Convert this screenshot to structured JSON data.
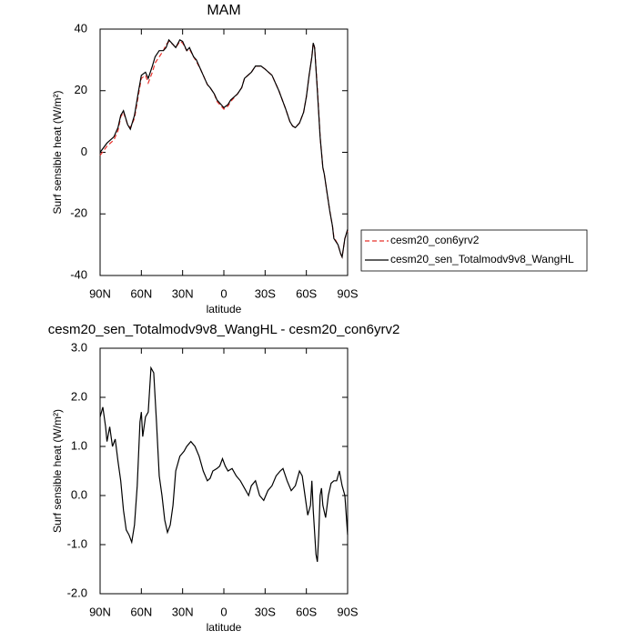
{
  "chart_data": [
    {
      "type": "line",
      "title": "MAM",
      "xlabel": "latitude",
      "ylabel": "Surf sensible heat (W/m²)",
      "x": [
        90,
        85,
        80,
        77,
        75,
        73,
        70,
        68,
        65,
        62,
        60,
        57,
        55,
        52,
        50,
        47,
        44,
        42,
        40,
        37,
        35,
        32,
        30,
        27,
        25,
        22,
        20,
        17,
        15,
        12,
        10,
        7,
        5,
        2,
        0,
        -3,
        -5,
        -10,
        -13,
        -15,
        -20,
        -23,
        -27,
        -30,
        -35,
        -40,
        -45,
        -48,
        -50,
        -52,
        -55,
        -58,
        -60,
        -62,
        -64,
        -65,
        -66,
        -68,
        -70,
        -72,
        -73,
        -75,
        -77,
        -79,
        -80,
        -83,
        -85,
        -86,
        -88,
        -90
      ],
      "series": [
        {
          "name": "cesm20_con6yrv2",
          "color": "#e8312b",
          "dash": true,
          "values": [
            -1,
            2,
            4,
            7,
            11.5,
            13,
            9,
            8,
            11,
            19,
            24,
            25,
            22.5,
            26,
            29,
            31,
            33,
            35,
            36,
            35,
            34,
            36,
            35.5,
            33,
            33.5,
            31,
            29.5,
            27,
            25,
            22,
            21,
            19,
            16.5,
            15,
            14,
            15,
            16.5,
            19,
            21,
            24,
            26,
            28,
            28,
            27,
            25,
            20,
            14,
            10,
            8.5,
            8,
            9.5,
            13,
            18,
            25,
            31,
            35.5,
            34,
            21,
            5,
            -5,
            -7,
            -13,
            -19,
            -24,
            -27.5,
            -30,
            -33,
            -34,
            -28,
            -25.5
          ]
        },
        {
          "name": "cesm20_sen_Totalmodv9v8_WangHL",
          "color": "#000000",
          "dash": false,
          "values": [
            0,
            3,
            5,
            8,
            12,
            13.5,
            9,
            7.5,
            12,
            20,
            25,
            26,
            24,
            28,
            31,
            33,
            33,
            34,
            36.5,
            35,
            34,
            36.5,
            36,
            33,
            34,
            31,
            30,
            27,
            25,
            22,
            21,
            19,
            17,
            15.5,
            14.5,
            15.5,
            17,
            19,
            21,
            24,
            26,
            28,
            28,
            27,
            25,
            20,
            14,
            10,
            8.5,
            8,
            9.5,
            13,
            18,
            25,
            31,
            35.5,
            34,
            20,
            5,
            -5,
            -7,
            -13,
            -19,
            -24,
            -28,
            -30,
            -33,
            -34,
            -28,
            -25
          ]
        }
      ],
      "xlim": [
        90,
        -90
      ],
      "xticks": [
        {
          "value": 90,
          "label": "90N"
        },
        {
          "value": 60,
          "label": "60N"
        },
        {
          "value": 30,
          "label": "30N"
        },
        0,
        {
          "value": -30,
          "label": "30S"
        },
        {
          "value": -60,
          "label": "60S"
        },
        {
          "value": -90,
          "label": "90S"
        }
      ],
      "ylim": [
        -40,
        40
      ],
      "yticks": [
        -40,
        -20,
        0,
        20,
        40
      ],
      "legend": "outside-right"
    },
    {
      "type": "line",
      "title": "cesm20_sen_Totalmodv9v8_WangHL - cesm20_con6yrv2",
      "xlabel": "latitude",
      "ylabel": "Surf sensible heat (W/m²)",
      "x": [
        90,
        88,
        86,
        85,
        83,
        81,
        79,
        77,
        75,
        73,
        71,
        69,
        67,
        65,
        63,
        61,
        60,
        59,
        57,
        55,
        53,
        51,
        49,
        47,
        45,
        43,
        41,
        39,
        37,
        35,
        32,
        29,
        27,
        24,
        21,
        18,
        15,
        12,
        10,
        8,
        5,
        3,
        1,
        -1,
        -3,
        -6,
        -9,
        -12,
        -15,
        -18,
        -20,
        -23,
        -26,
        -29,
        -32,
        -35,
        -38,
        -41,
        -43,
        -46,
        -49,
        -52,
        -55,
        -57,
        -59,
        -61,
        -63,
        -64,
        -65,
        -67,
        -68,
        -69,
        -70,
        -71,
        -72,
        -74,
        -76,
        -78,
        -80,
        -82,
        -84,
        -86,
        -88,
        -90
      ],
      "values": [
        1.6,
        1.8,
        1.4,
        1.1,
        1.4,
        1.0,
        1.15,
        0.7,
        0.3,
        -0.3,
        -0.7,
        -0.8,
        -0.95,
        -0.6,
        0.2,
        1.5,
        1.7,
        1.2,
        1.6,
        1.7,
        2.6,
        2.5,
        1.5,
        0.4,
        0.0,
        -0.5,
        -0.75,
        -0.6,
        -0.2,
        0.5,
        0.8,
        0.9,
        1.0,
        1.1,
        1.0,
        0.8,
        0.5,
        0.3,
        0.35,
        0.5,
        0.55,
        0.6,
        0.75,
        0.6,
        0.5,
        0.55,
        0.4,
        0.3,
        0.15,
        0.0,
        0.2,
        0.3,
        0.0,
        -0.1,
        0.1,
        0.2,
        0.4,
        0.5,
        0.55,
        0.3,
        0.1,
        0.2,
        0.5,
        0.4,
        0.0,
        -0.4,
        -0.2,
        0.3,
        -0.3,
        -1.2,
        -1.35,
        -0.8,
        0.0,
        0.15,
        -0.2,
        -0.45,
        0.0,
        0.25,
        0.3,
        0.3,
        0.5,
        0.2,
        0.0,
        -0.8
      ],
      "color": "#000000",
      "xlim": [
        90,
        -90
      ],
      "xticks": [
        {
          "value": 90,
          "label": "90N"
        },
        {
          "value": 60,
          "label": "60N"
        },
        {
          "value": 30,
          "label": "30N"
        },
        0,
        {
          "value": -30,
          "label": "30S"
        },
        {
          "value": -60,
          "label": "60S"
        },
        {
          "value": -90,
          "label": "90S"
        }
      ],
      "ylim": [
        -2,
        3
      ],
      "yticks": [
        {
          "value": -2,
          "label": "-2.0"
        },
        {
          "value": -1,
          "label": "-1.0"
        },
        {
          "value": 0,
          "label": "0.0"
        },
        {
          "value": 1,
          "label": "1.0"
        },
        {
          "value": 2,
          "label": "2.0"
        },
        {
          "value": 3,
          "label": "3.0"
        }
      ]
    }
  ]
}
